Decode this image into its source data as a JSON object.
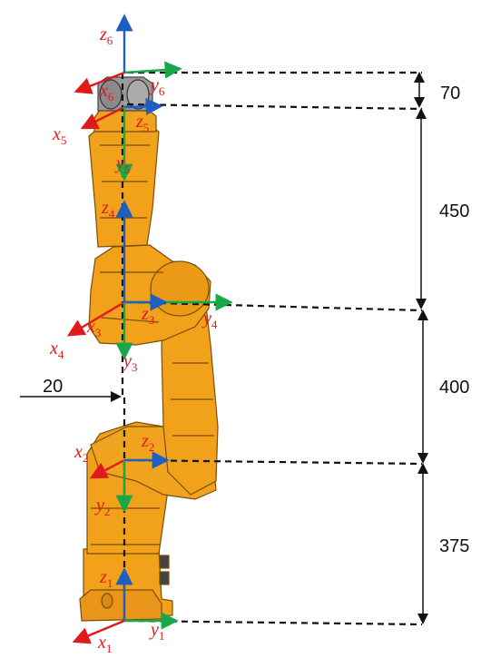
{
  "dimensions": {
    "d70": "70",
    "d450": "450",
    "d400": "400",
    "d375": "375",
    "offset": "20"
  },
  "frames": {
    "z6": {
      "base": "z",
      "sub": "6"
    },
    "y6": {
      "base": "y",
      "sub": "6"
    },
    "x6": {
      "base": "x",
      "sub": "6"
    },
    "x5": {
      "base": "x",
      "sub": "5"
    },
    "z5": {
      "base": "z",
      "sub": "5"
    },
    "y5": {
      "base": "y",
      "sub": "5"
    },
    "z4": {
      "base": "z",
      "sub": "4"
    },
    "z3": {
      "base": "z",
      "sub": "3"
    },
    "y4": {
      "base": "y",
      "sub": "4"
    },
    "x4": {
      "base": "x",
      "sub": "4"
    },
    "x3": {
      "base": "x",
      "sub": "3"
    },
    "y3": {
      "base": "y",
      "sub": "3"
    },
    "x2": {
      "base": "x",
      "sub": "2"
    },
    "z2": {
      "base": "z",
      "sub": "2"
    },
    "y2": {
      "base": "y",
      "sub": "2"
    },
    "z1": {
      "base": "z",
      "sub": "1"
    },
    "x1": {
      "base": "x",
      "sub": "1"
    },
    "y1": {
      "base": "y",
      "sub": "1"
    }
  },
  "colors": {
    "robot_body": "#f2a21a",
    "robot_edge": "#7a4e08",
    "gripper": "#9a9a9a",
    "axis_x": "#e0191b",
    "axis_y": "#18a84a",
    "axis_z": "#1f5fbf",
    "frame_label": "#e0191b",
    "dashed": "#111111"
  }
}
